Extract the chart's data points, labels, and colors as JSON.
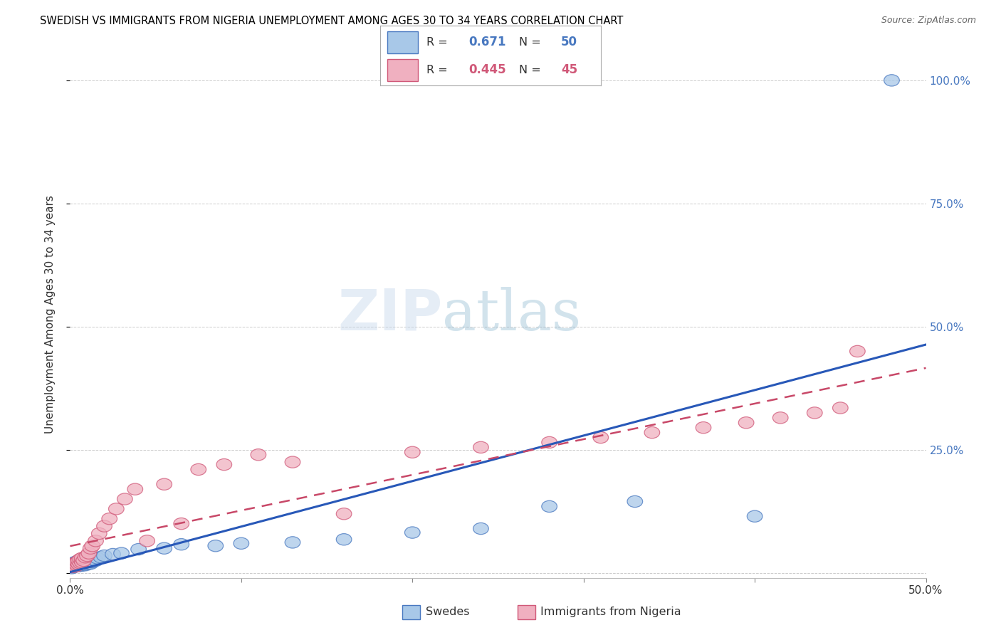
{
  "title": "SWEDISH VS IMMIGRANTS FROM NIGERIA UNEMPLOYMENT AMONG AGES 30 TO 34 YEARS CORRELATION CHART",
  "source": "Source: ZipAtlas.com",
  "ylabel": "Unemployment Among Ages 30 to 34 years",
  "xlim": [
    0.0,
    0.5
  ],
  "ylim": [
    -0.01,
    1.06
  ],
  "xtick_positions": [
    0.0,
    0.1,
    0.2,
    0.3,
    0.4,
    0.5
  ],
  "xtick_labels": [
    "0.0%",
    "",
    "",
    "",
    "",
    "50.0%"
  ],
  "ytick_positions": [
    0.0,
    0.25,
    0.5,
    0.75,
    1.0
  ],
  "ytick_labels": [
    "",
    "25.0%",
    "50.0%",
    "75.0%",
    "100.0%"
  ],
  "swedes_R": "0.671",
  "swedes_N": "50",
  "nigeria_R": "0.445",
  "nigeria_N": "45",
  "swedes_fill": "#a8c8e8",
  "swedes_edge": "#4878c0",
  "nigeria_fill": "#f0b0c0",
  "nigeria_edge": "#d05878",
  "swedes_line": "#2858b8",
  "nigeria_line": "#c84868",
  "grid_color": "#cccccc",
  "swedes_x": [
    0.001,
    0.002,
    0.002,
    0.003,
    0.003,
    0.003,
    0.004,
    0.004,
    0.004,
    0.005,
    0.005,
    0.005,
    0.006,
    0.006,
    0.006,
    0.007,
    0.007,
    0.007,
    0.008,
    0.008,
    0.008,
    0.009,
    0.009,
    0.01,
    0.01,
    0.011,
    0.011,
    0.012,
    0.012,
    0.013,
    0.014,
    0.015,
    0.016,
    0.018,
    0.02,
    0.025,
    0.03,
    0.04,
    0.055,
    0.065,
    0.085,
    0.1,
    0.13,
    0.16,
    0.2,
    0.24,
    0.28,
    0.33,
    0.4,
    0.48
  ],
  "swedes_y": [
    0.01,
    0.012,
    0.018,
    0.015,
    0.02,
    0.022,
    0.016,
    0.019,
    0.023,
    0.014,
    0.018,
    0.021,
    0.016,
    0.02,
    0.024,
    0.015,
    0.019,
    0.023,
    0.017,
    0.021,
    0.025,
    0.016,
    0.02,
    0.018,
    0.022,
    0.02,
    0.024,
    0.019,
    0.023,
    0.022,
    0.028,
    0.025,
    0.03,
    0.032,
    0.035,
    0.038,
    0.04,
    0.048,
    0.05,
    0.058,
    0.055,
    0.06,
    0.062,
    0.068,
    0.082,
    0.09,
    0.135,
    0.145,
    0.115,
    1.0
  ],
  "nigeria_x": [
    0.001,
    0.002,
    0.002,
    0.003,
    0.003,
    0.004,
    0.004,
    0.005,
    0.005,
    0.006,
    0.006,
    0.007,
    0.007,
    0.008,
    0.009,
    0.01,
    0.011,
    0.012,
    0.013,
    0.015,
    0.017,
    0.02,
    0.023,
    0.027,
    0.032,
    0.038,
    0.045,
    0.055,
    0.065,
    0.075,
    0.09,
    0.11,
    0.13,
    0.16,
    0.2,
    0.24,
    0.28,
    0.31,
    0.34,
    0.37,
    0.395,
    0.415,
    0.435,
    0.45,
    0.46
  ],
  "nigeria_y": [
    0.012,
    0.015,
    0.018,
    0.013,
    0.02,
    0.016,
    0.022,
    0.018,
    0.025,
    0.02,
    0.028,
    0.022,
    0.03,
    0.025,
    0.032,
    0.035,
    0.04,
    0.05,
    0.055,
    0.065,
    0.08,
    0.095,
    0.11,
    0.13,
    0.15,
    0.17,
    0.065,
    0.18,
    0.1,
    0.21,
    0.22,
    0.24,
    0.225,
    0.12,
    0.245,
    0.255,
    0.265,
    0.275,
    0.285,
    0.295,
    0.305,
    0.315,
    0.325,
    0.335,
    0.45
  ]
}
